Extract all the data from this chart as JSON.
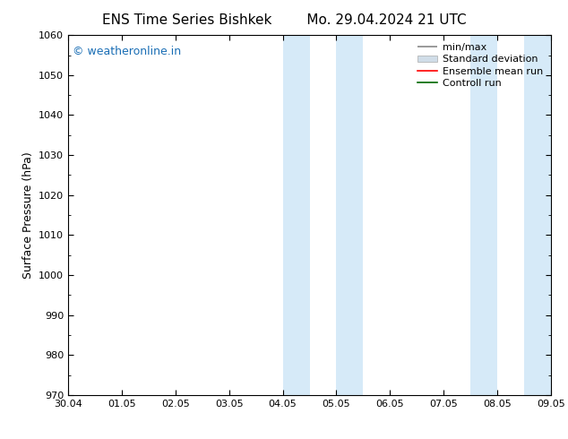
{
  "title_left": "ENS Time Series Bishkek",
  "title_right": "Mo. 29.04.2024 21 UTC",
  "ylabel": "Surface Pressure (hPa)",
  "ylim": [
    970,
    1060
  ],
  "yticks": [
    970,
    980,
    990,
    1000,
    1010,
    1020,
    1030,
    1040,
    1050,
    1060
  ],
  "xtick_labels": [
    "30.04",
    "01.05",
    "02.05",
    "03.05",
    "04.05",
    "05.05",
    "06.05",
    "07.05",
    "08.05",
    "09.05"
  ],
  "x_positions": [
    0,
    1,
    2,
    3,
    4,
    5,
    6,
    7,
    8,
    9
  ],
  "xlim": [
    0,
    9
  ],
  "shaded_regions": [
    {
      "x_start": 4.0,
      "x_end": 4.5
    },
    {
      "x_start": 5.0,
      "x_end": 5.5
    },
    {
      "x_start": 7.5,
      "x_end": 8.0
    },
    {
      "x_start": 8.5,
      "x_end": 9.0
    }
  ],
  "shaded_color": "#d6eaf8",
  "watermark_text": "© weatheronline.in",
  "watermark_color": "#1a6eb5",
  "background_color": "#ffffff",
  "title_fontsize": 11,
  "axis_label_fontsize": 9,
  "tick_fontsize": 8,
  "watermark_fontsize": 9,
  "legend_fontsize": 8
}
